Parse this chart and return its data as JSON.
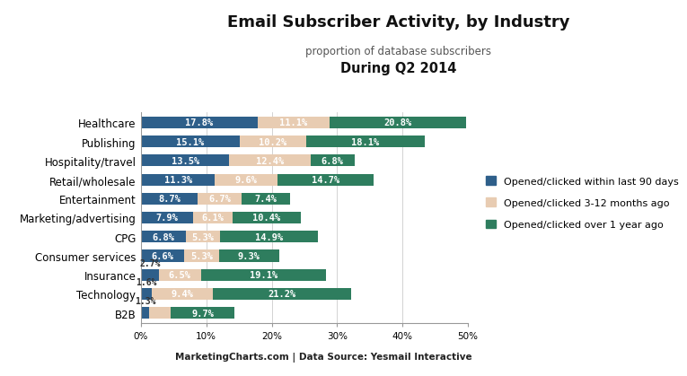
{
  "title": "Email Subscriber Activity, by Industry",
  "subtitle": "proportion of database subscribers",
  "subtitle2": "During Q2 2014",
  "footer": "MarketingCharts.com | Data Source: Yesmail Interactive",
  "categories": [
    "Healthcare",
    "Publishing",
    "Hospitality/travel",
    "Retail/wholesale",
    "Entertainment",
    "Marketing/advertising",
    "CPG",
    "Consumer services",
    "Insurance",
    "Technology",
    "B2B"
  ],
  "series": [
    {
      "name": "Opened/clicked within last 90 days",
      "color": "#2e5f8a",
      "values": [
        17.8,
        15.1,
        13.5,
        11.3,
        8.7,
        7.9,
        6.8,
        6.6,
        2.7,
        1.6,
        1.3
      ]
    },
    {
      "name": "Opened/clicked 3-12 months ago",
      "color": "#e8ccb2",
      "values": [
        11.1,
        10.2,
        12.4,
        9.6,
        6.7,
        6.1,
        5.3,
        5.3,
        6.5,
        9.4,
        3.3
      ]
    },
    {
      "name": "Opened/clicked over 1 year ago",
      "color": "#2e7d5e",
      "values": [
        20.8,
        18.1,
        6.8,
        14.7,
        7.4,
        10.4,
        14.9,
        9.3,
        19.1,
        21.2,
        9.7
      ]
    }
  ],
  "xlim": [
    0,
    50
  ],
  "xticks": [
    0,
    10,
    20,
    30,
    40,
    50
  ],
  "xticklabels": [
    "0%",
    "10%",
    "20%",
    "30%",
    "40%",
    "50%"
  ],
  "chart_bg": "#ffffff",
  "fig_bg": "#ffffff",
  "footer_bg": "#c8c8c8",
  "bar_height": 0.62,
  "label_fontsize": 7.5,
  "title_fontsize": 13,
  "subtitle_fontsize": 8.5,
  "subtitle2_fontsize": 10.5,
  "footer_fontsize": 7.5,
  "category_fontsize": 8.5,
  "legend_fontsize": 8,
  "logo_color": "#f0a500",
  "logo_text_color": "#ffffff"
}
